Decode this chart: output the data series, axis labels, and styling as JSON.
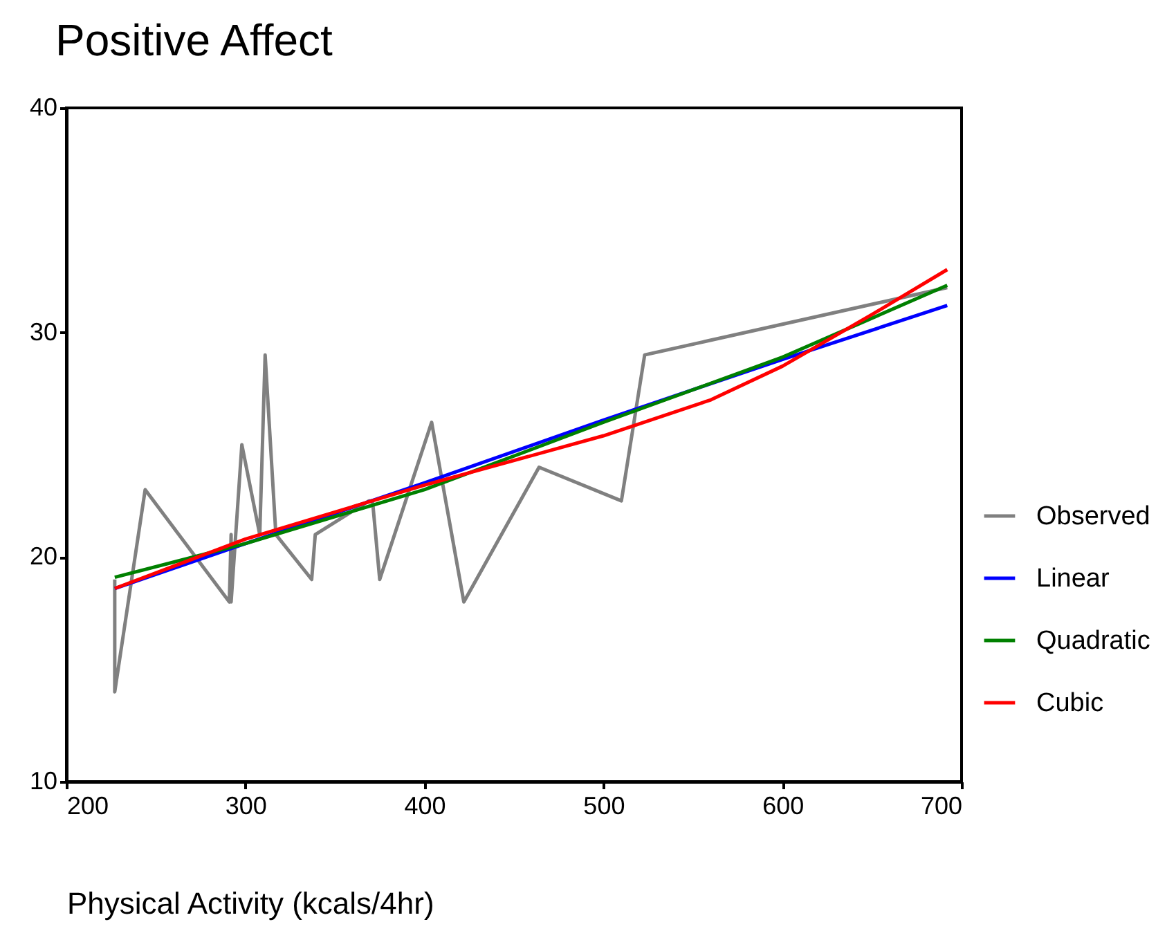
{
  "chart_data": {
    "type": "line",
    "title": "Positive Affect",
    "xlabel": "Physical Activity (kcals/4hr)",
    "xlim": [
      200,
      700
    ],
    "xticks": [
      200,
      300,
      400,
      500,
      600,
      700
    ],
    "ylim": [
      10,
      40
    ],
    "yticks": [
      10,
      20,
      30,
      40
    ],
    "grid": false,
    "legend": "right",
    "marker": "none",
    "line_style": "solid",
    "series": [
      {
        "name": "Observed",
        "color": "#808080",
        "x": [
          227,
          227,
          244,
          291,
          292,
          292,
          298,
          308,
          311,
          317,
          337,
          339,
          369,
          371,
          375,
          404,
          422,
          464,
          510,
          523,
          692
        ],
        "values": [
          19,
          14,
          23,
          18,
          21,
          18,
          25,
          21,
          29,
          21,
          19,
          21,
          22.5,
          22.5,
          19,
          26,
          18,
          24,
          22.5,
          29,
          32
        ]
      },
      {
        "name": "Linear",
        "color": "#0000ff",
        "x": [
          227,
          300,
          400,
          500,
          600,
          692
        ],
        "values": [
          18.6,
          20.6,
          23.3,
          26.1,
          28.8,
          31.2
        ]
      },
      {
        "name": "Quadratic",
        "color": "#008000",
        "x": [
          227,
          300,
          400,
          500,
          600,
          692
        ],
        "values": [
          19.1,
          20.6,
          23.0,
          26.0,
          28.9,
          32.1
        ]
      },
      {
        "name": "Cubic",
        "color": "#ff0000",
        "x": [
          227,
          300,
          400,
          500,
          560,
          600,
          650,
          692
        ],
        "values": [
          18.6,
          20.8,
          23.2,
          25.4,
          27.0,
          28.5,
          30.8,
          32.8
        ]
      }
    ]
  }
}
